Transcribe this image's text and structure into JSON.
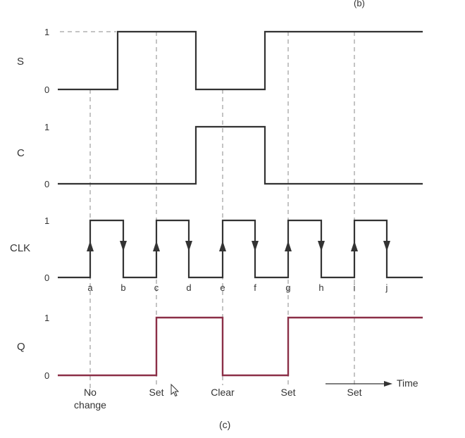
{
  "figure_labels": {
    "top": "(b)",
    "bottom": "(c)"
  },
  "level_labels": {
    "high": "1",
    "low": "0"
  },
  "signals": {
    "s": {
      "name": "S"
    },
    "c": {
      "name": "C"
    },
    "clk": {
      "name": "CLK"
    },
    "q": {
      "name": "Q"
    }
  },
  "clock_edges": [
    "a",
    "b",
    "c",
    "d",
    "e",
    "f",
    "g",
    "h",
    "i",
    "j"
  ],
  "outcomes": [
    {
      "line1": "No",
      "line2": "change"
    },
    {
      "line1": "Set",
      "line2": ""
    },
    {
      "line1": "Clear",
      "line2": ""
    },
    {
      "line1": "Set",
      "line2": ""
    },
    {
      "line1": "Set",
      "line2": ""
    }
  ],
  "time_axis": {
    "label": "Time"
  },
  "colors": {
    "signal": "#333333",
    "q_signal": "#8b2f47",
    "dashed": "#888888"
  },
  "icons": {
    "cursor": "mouse-pointer-icon"
  }
}
